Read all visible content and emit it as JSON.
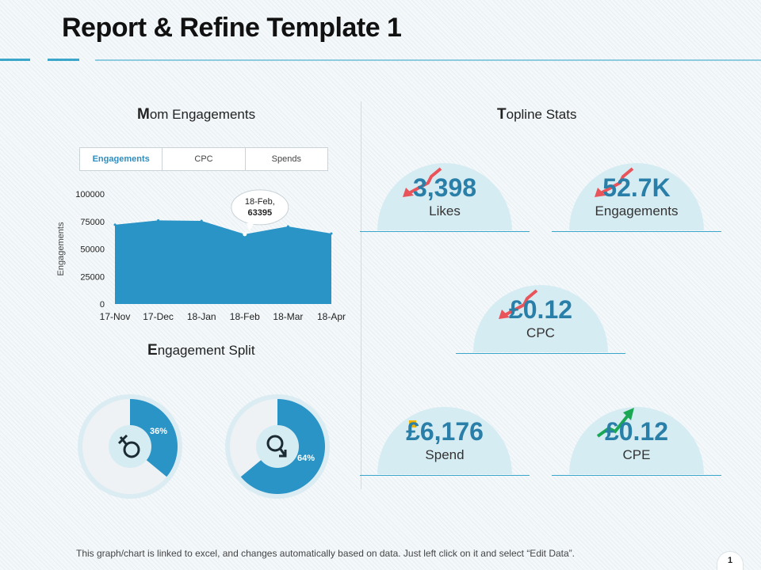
{
  "title": "Report & Refine Template 1",
  "sections": {
    "mom": {
      "first": "M",
      "rest": "om Engagements"
    },
    "split": {
      "first": "E",
      "rest": "ngagement Split"
    },
    "topline": {
      "first": "T",
      "rest": "opline Stats"
    }
  },
  "tabs": [
    "Engagements",
    "CPC",
    "Spends"
  ],
  "chart_data": [
    {
      "type": "area",
      "title": "Mom Engagements",
      "xlabel": "",
      "ylabel": "Engagements",
      "categories": [
        "17-Nov",
        "17-Dec",
        "18-Jan",
        "18-Feb",
        "18-Mar",
        "18-Apr"
      ],
      "values": [
        72000,
        76000,
        75500,
        63395,
        70500,
        64000
      ],
      "ylim": [
        0,
        100000
      ],
      "yticks": [
        0,
        25000,
        50000,
        75000,
        100000
      ],
      "ytick_labels": [
        "0",
        "25000",
        "50000",
        "75000",
        "100000"
      ],
      "color": "#2a94c6",
      "callout": {
        "category": "18-Feb",
        "line1": "18-Feb,",
        "line2": "63395"
      }
    },
    {
      "type": "pie",
      "title": "Engagement Split",
      "slices": [
        {
          "name": "female",
          "value": 36,
          "label": "36%",
          "icon": "female-symbol-icon"
        },
        {
          "name": "male",
          "value": 64,
          "label": "64%",
          "icon": "male-symbol-icon"
        }
      ]
    }
  ],
  "stats": [
    {
      "value": "3,398",
      "label": "Likes",
      "trend": "down",
      "trend_color": "#e8545a"
    },
    {
      "value": "52.7K",
      "label": "Engagements",
      "trend": "down",
      "trend_color": "#e8545a"
    },
    {
      "value": "£0.12",
      "label": "CPC",
      "trend": "down",
      "trend_color": "#e8545a"
    },
    {
      "value": "£6,176",
      "label": "Spend",
      "trend": "neutral",
      "trend_color": "#f0b400"
    },
    {
      "value": "£0.12",
      "label": "CPE",
      "trend": "up",
      "trend_color": "#1aa855"
    }
  ],
  "footer_note": "This graph/chart is linked to excel, and changes automatically based on data.  Just left click on it and select “Edit Data”.",
  "page_number": "1",
  "colors": {
    "accent": "#2a94c6",
    "dome": "#d6ecf3",
    "rule": "#3aa6c9"
  }
}
